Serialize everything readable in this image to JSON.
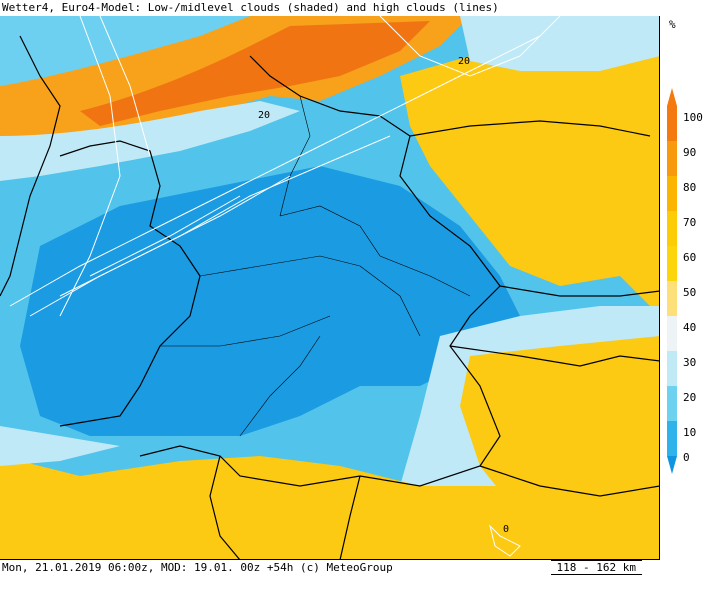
{
  "header": {
    "title": "Wetter4, Euro4-Model: Low-/midlevel clouds (shaded) and high clouds (lines)"
  },
  "footer": {
    "info": "Mon, 21.01.2019 06:00z, MOD: 19.01. 00z +54h (c) MeteoGroup",
    "scale": "118 - 162 km"
  },
  "legend": {
    "unit": "%",
    "levels": [
      "100",
      "90",
      "80",
      "70",
      "60",
      "50",
      "40",
      "30",
      "20",
      "10",
      "0"
    ],
    "colors": [
      "#f47a0f",
      "#f79a0e",
      "#fbb500",
      "#fccc07",
      "#fcd60a",
      "#eef3f5",
      "#bfeaf5",
      "#6dd1f0",
      "#2fb3ea",
      "#0f95e0"
    ]
  },
  "map": {
    "contour_labels": [
      "20",
      "20",
      "0"
    ],
    "colors": {
      "high_orange": "#f07512",
      "mid_orange": "#f7a21a",
      "yellow": "#fcc913",
      "light_blue": "#bfe9f6",
      "sky": "#52c3ea",
      "deep_blue": "#1a9be2",
      "border": "#000000",
      "contour": "#ffffff"
    }
  }
}
